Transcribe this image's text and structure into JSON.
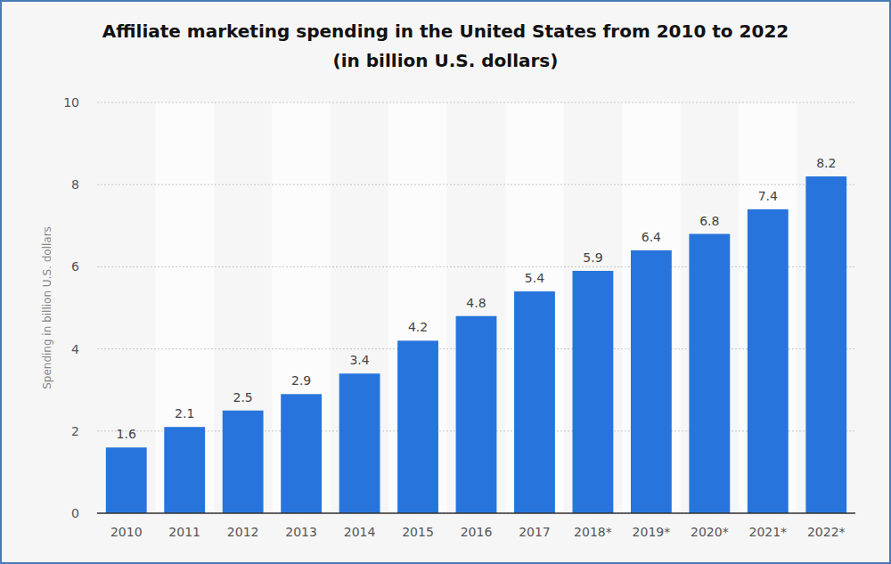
{
  "chart_data": {
    "type": "bar",
    "title": "Affiliate marketing spending in the United States from 2010 to 2022",
    "subtitle": "(in billion U.S. dollars)",
    "y_label": "Spending in billion U.S. dollars",
    "categories": [
      "2010",
      "2011",
      "2012",
      "2013",
      "2014",
      "2015",
      "2016",
      "2017",
      "2018*",
      "2019*",
      "2020*",
      "2021*",
      "2022*"
    ],
    "values": [
      1.6,
      2.1,
      2.5,
      2.9,
      3.4,
      4.2,
      4.8,
      5.4,
      5.9,
      6.4,
      6.8,
      7.4,
      8.2
    ],
    "color": "#2775dc",
    "ylim": [
      0,
      10
    ],
    "yticks": [
      0,
      2,
      4,
      6,
      8,
      10
    ],
    "grid": true,
    "data_labels": true
  }
}
